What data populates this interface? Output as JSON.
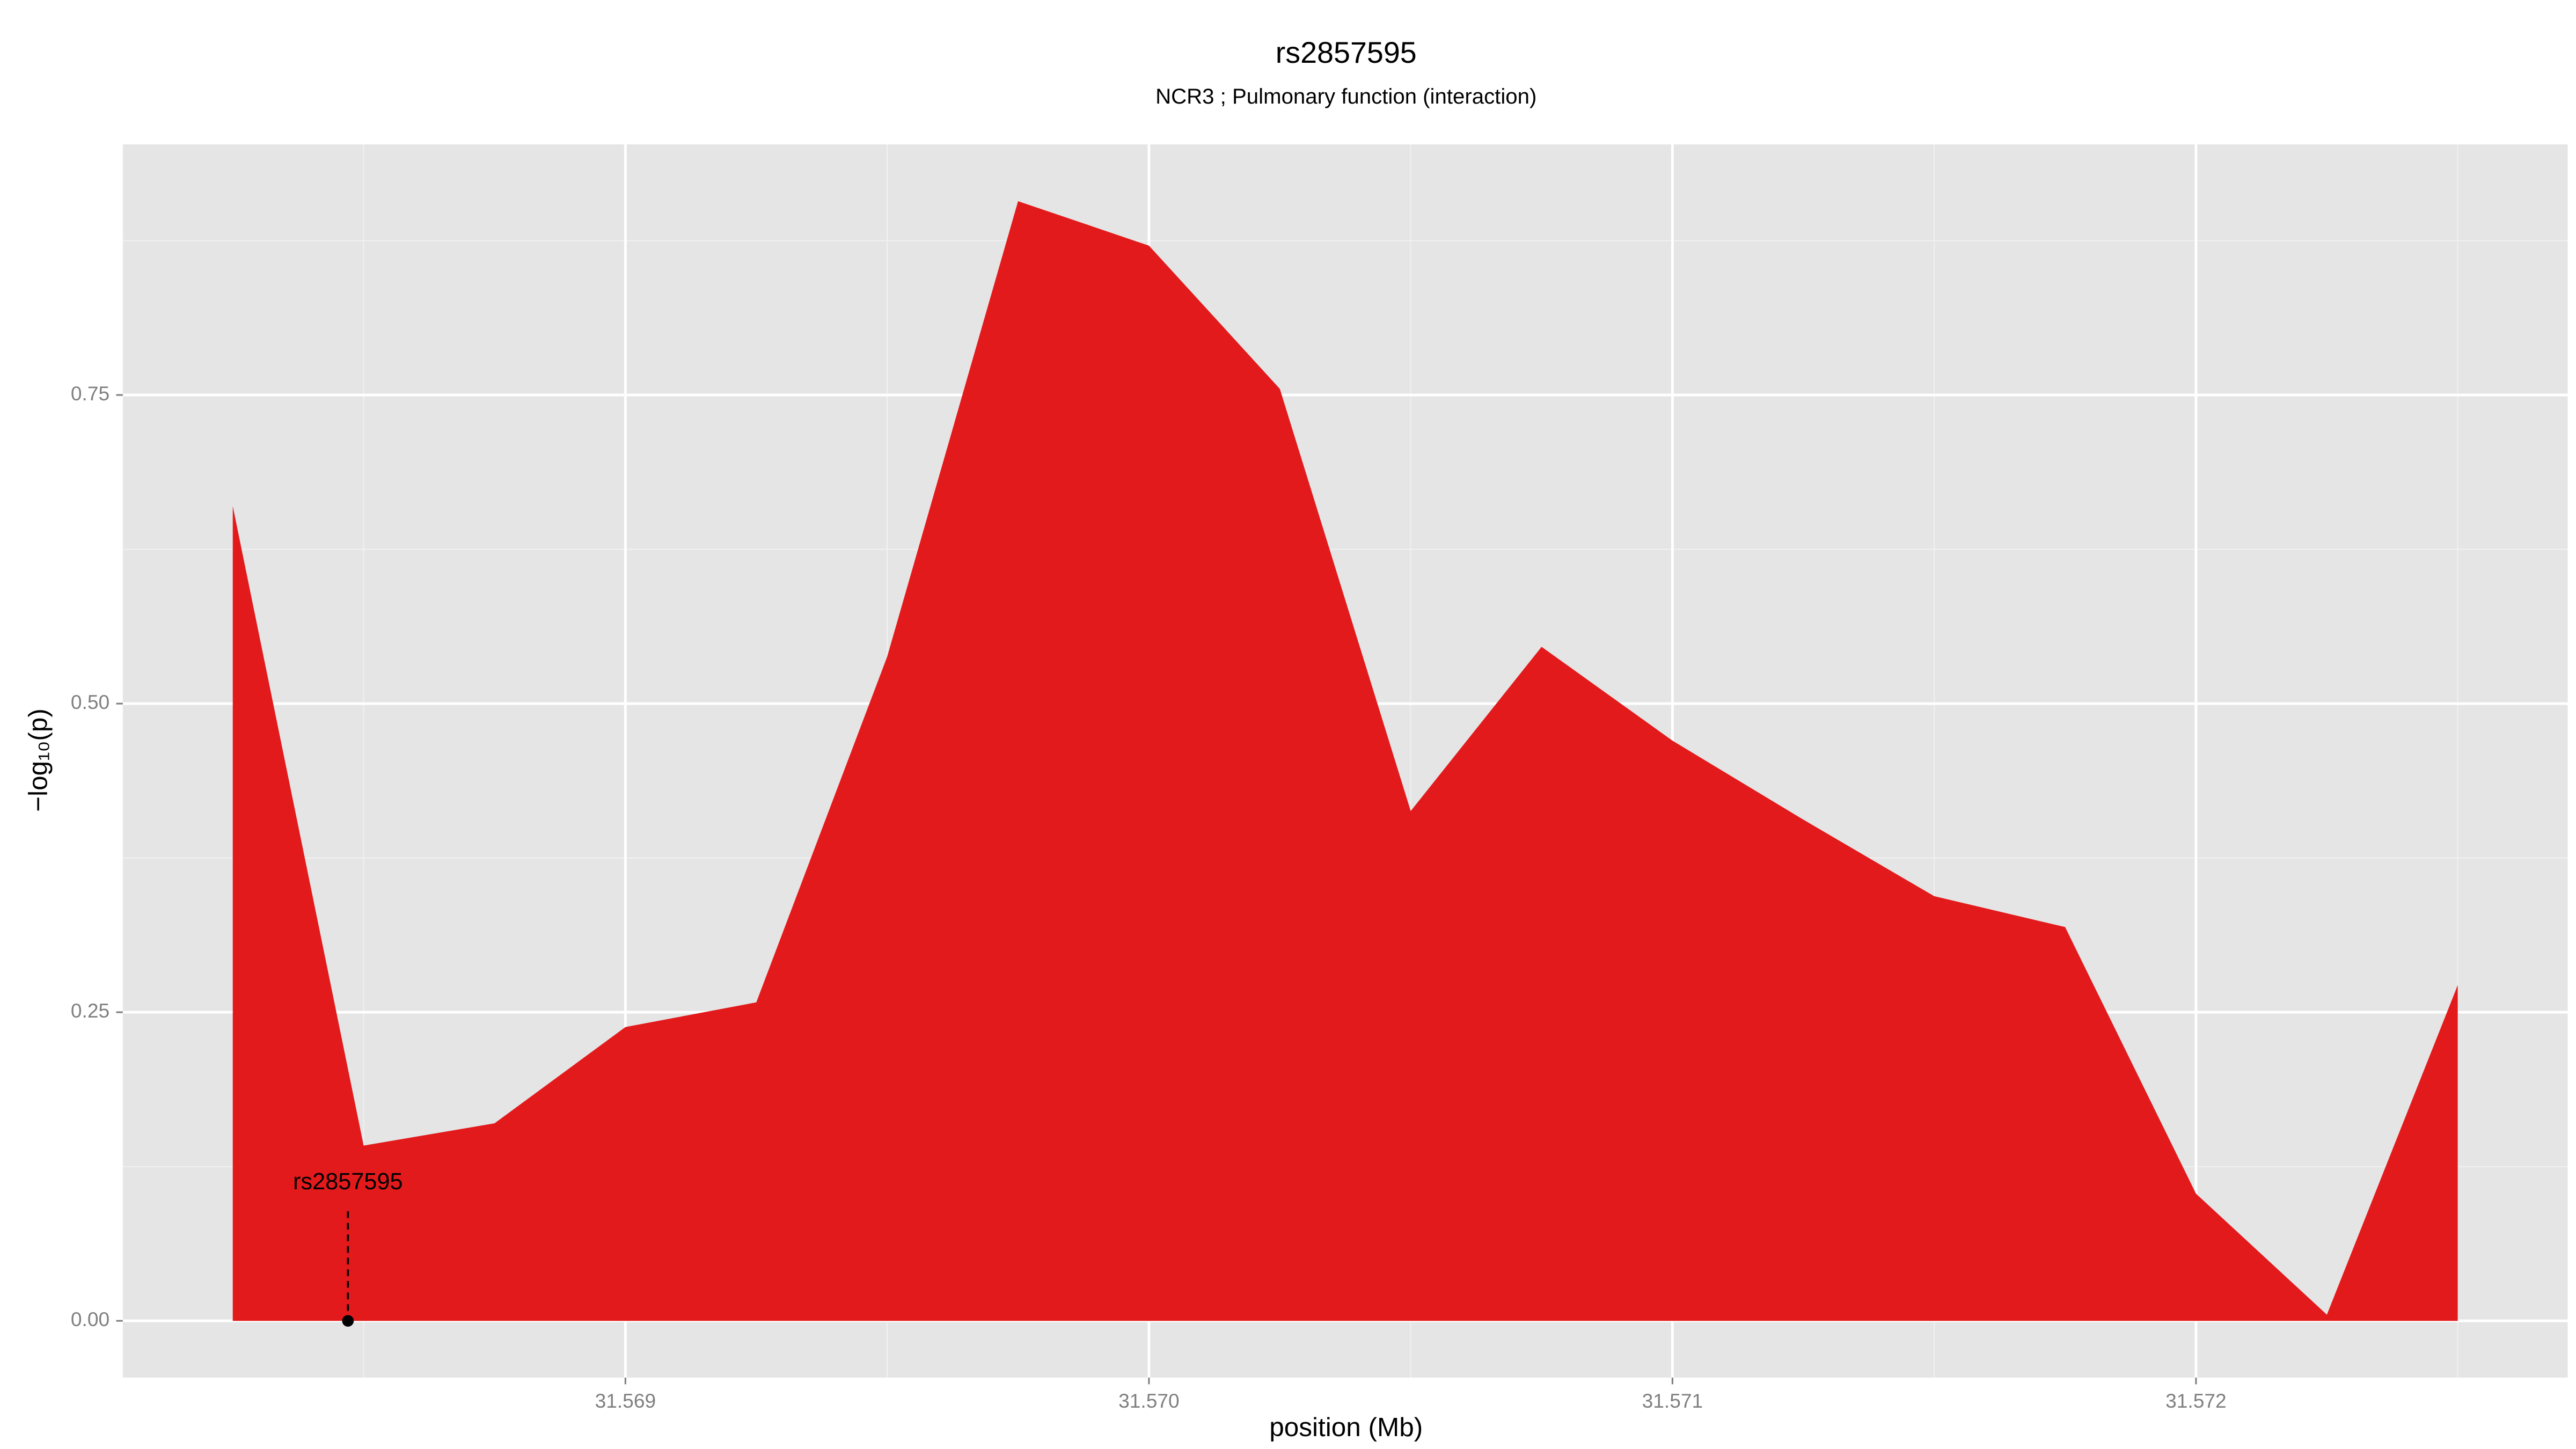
{
  "chart_data": {
    "type": "area",
    "title": "rs2857595",
    "subtitle": "NCR3 ; Pulmonary function (interaction)",
    "x_label": "position (Mb)",
    "y_label": "−log₁₀(p)",
    "x": [
      31.56825,
      31.5685,
      31.56875,
      31.569,
      31.56925,
      31.5695,
      31.56975,
      31.57,
      31.57025,
      31.5705,
      31.57075,
      31.571,
      31.57125,
      31.5715,
      31.57175,
      31.572,
      31.57225,
      31.5725
    ],
    "values": [
      0.66,
      0.142,
      0.16,
      0.238,
      0.258,
      0.538,
      0.907,
      0.871,
      0.755,
      0.413,
      0.546,
      0.47,
      0.406,
      0.344,
      0.319,
      0.103,
      0.005,
      0.272
    ],
    "color": "#e31a1c",
    "xlim": [
      31.56804,
      31.57271
    ],
    "ylim": [
      -0.046,
      0.953
    ],
    "xticks": [
      31.569,
      {
        "value": 31.57,
        "label": "31.570"
      },
      31.571,
      {
        "value": 31.572,
        "label": "31.572"
      }
    ],
    "yticks": [
      {
        "value": 0,
        "label": "0.00"
      },
      0.25,
      {
        "value": 0.5,
        "label": "0.50"
      },
      0.75
    ],
    "grid": true,
    "annotation": {
      "label": "rs2857595",
      "x": 31.56847,
      "y": 0
    }
  }
}
